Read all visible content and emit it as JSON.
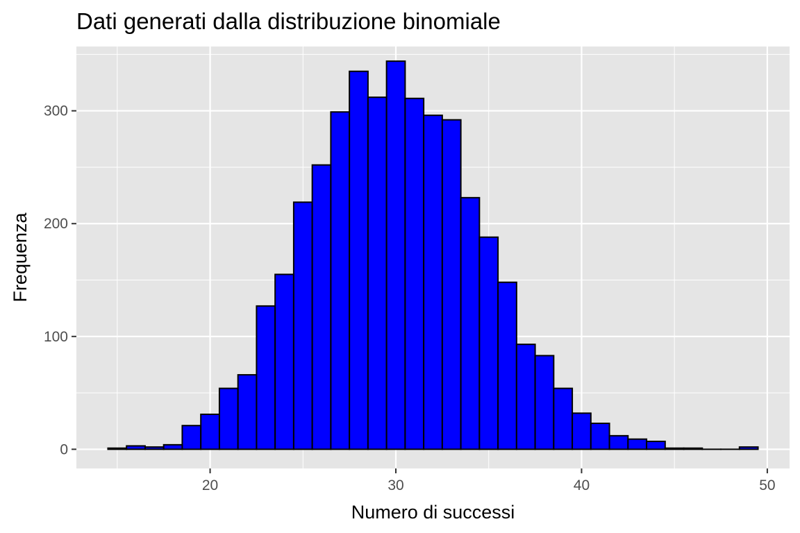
{
  "chart_data": {
    "type": "bar",
    "title": "Dati generati dalla distribuzione binomiale",
    "xlabel": "Numero di successi",
    "ylabel": "Frequenza",
    "xlim": [
      12.8,
      51.2
    ],
    "ylim": [
      -17,
      357
    ],
    "x_ticks": [
      20,
      30,
      40,
      50
    ],
    "y_ticks": [
      0,
      100,
      200,
      300
    ],
    "grid": true,
    "legend": "none",
    "bin_width": 1,
    "bin_centers": [
      15,
      16,
      17,
      18,
      19,
      20,
      21,
      22,
      23,
      24,
      25,
      26,
      27,
      28,
      29,
      30,
      31,
      32,
      33,
      34,
      35,
      36,
      37,
      38,
      39,
      40,
      41,
      42,
      43,
      44,
      45,
      46,
      47,
      48,
      49
    ],
    "values": [
      1,
      3,
      2,
      4,
      21,
      31,
      54,
      66,
      127,
      155,
      219,
      252,
      299,
      335,
      312,
      344,
      311,
      296,
      292,
      223,
      188,
      148,
      93,
      83,
      54,
      32,
      23,
      12,
      9,
      7,
      1,
      1,
      0,
      0,
      2
    ],
    "colors": {
      "bar_fill": "#0000ff",
      "bar_stroke": "#000000",
      "panel_bg": "#e5e5e5",
      "grid": "#ffffff"
    }
  }
}
